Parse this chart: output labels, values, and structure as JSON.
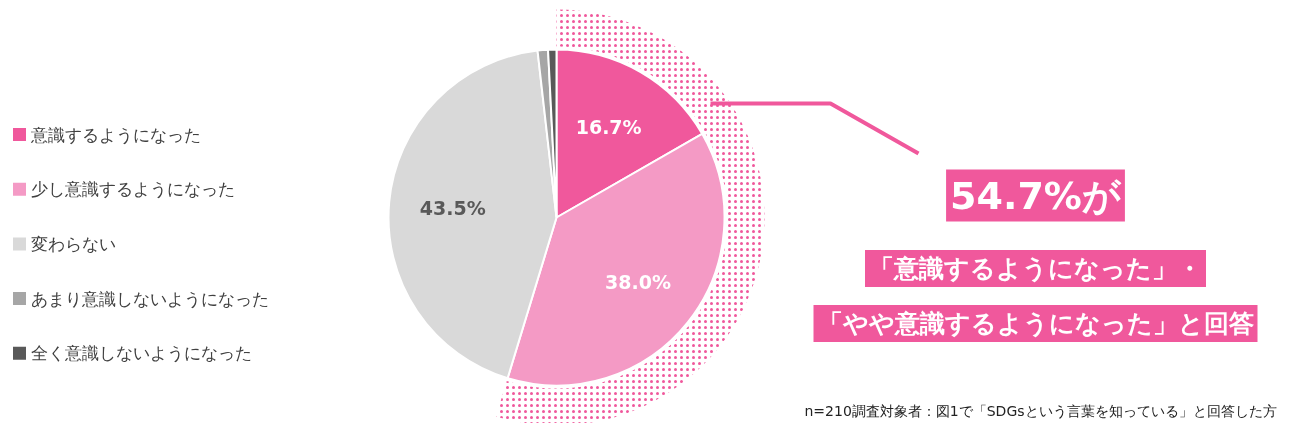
{
  "chart_data": {
    "type": "pie",
    "categories": [
      "意識するようになった",
      "少し意識するようになった",
      "変わらない",
      "あまり意識しないようになった",
      "全く意識しないようになった"
    ],
    "values": [
      16.7,
      38.0,
      43.5,
      1.0,
      0.8
    ],
    "colors": [
      "#f0589c",
      "#f49ac5",
      "#d9d9d9",
      "#a6a6a6",
      "#595959"
    ],
    "value_labels": [
      "16.7%",
      "38.0%",
      "43.5%",
      null,
      null
    ],
    "legend": "left",
    "annotations": [
      "54.7%が",
      "「意識するようになった」・",
      "「やや意識するようになった」と回答",
      "n=210調査対象者：図1で「SDGsという言葉を知っている」と回答した方"
    ]
  }
}
